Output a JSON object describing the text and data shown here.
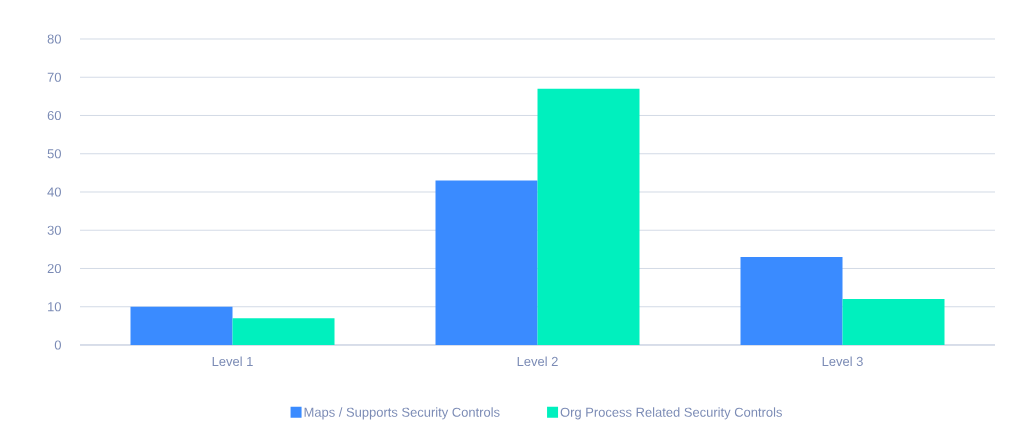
{
  "chart_data": {
    "type": "bar",
    "categories": [
      "Level 1",
      "Level 2",
      "Level 3"
    ],
    "series": [
      {
        "name": "Maps / Supports Security Controls",
        "color": "#3a8bff",
        "values": [
          10,
          43,
          23
        ]
      },
      {
        "name": "Org Process Related Security Controls",
        "color": "#00f0be",
        "values": [
          7,
          67,
          12
        ]
      }
    ],
    "ylim": [
      0,
      80
    ],
    "yticks": [
      0,
      10,
      20,
      30,
      40,
      50,
      60,
      70,
      80
    ],
    "grid": "y",
    "legend": "bottom"
  }
}
